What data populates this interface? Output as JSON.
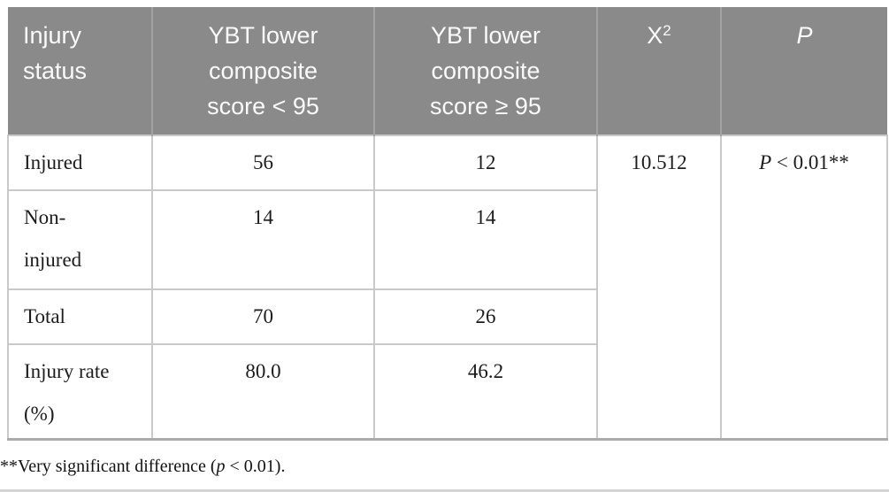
{
  "table": {
    "header": {
      "injury_status": "Injury\nstatus",
      "ybt_lt95": "YBT lower\ncomposite\nscore < 95",
      "ybt_ge95": "YBT lower\ncomposite\nscore ≥ 95",
      "chi_base": "X",
      "chi_sup": "2",
      "p_label": "P"
    },
    "rows": [
      {
        "label": "Injured",
        "lt95": "56",
        "ge95": "12"
      },
      {
        "label": "Non-\ninjured",
        "lt95": "14",
        "ge95": "14"
      },
      {
        "label": "Total",
        "lt95": "70",
        "ge95": "26"
      },
      {
        "label": "Injury rate\n(%)",
        "lt95": "80.0",
        "ge95": "46.2"
      }
    ],
    "chi_value": "10.512",
    "p_value_prefix": "P",
    "p_value_rest": " < 0.01**"
  },
  "footnote": {
    "part1": "**Very significant difference (",
    "italic_p": "p",
    "part2": " < 0.01)."
  },
  "colors": {
    "header_bg": "#8a8a8a",
    "header_text": "#fafafa",
    "header_divider": "#a2a2a2",
    "cell_border": "#c9c9c9",
    "table_bottom_rule": "#ababab",
    "body_text": "#1c1c1c",
    "page_bottom_strip": "#d4d4d4"
  }
}
